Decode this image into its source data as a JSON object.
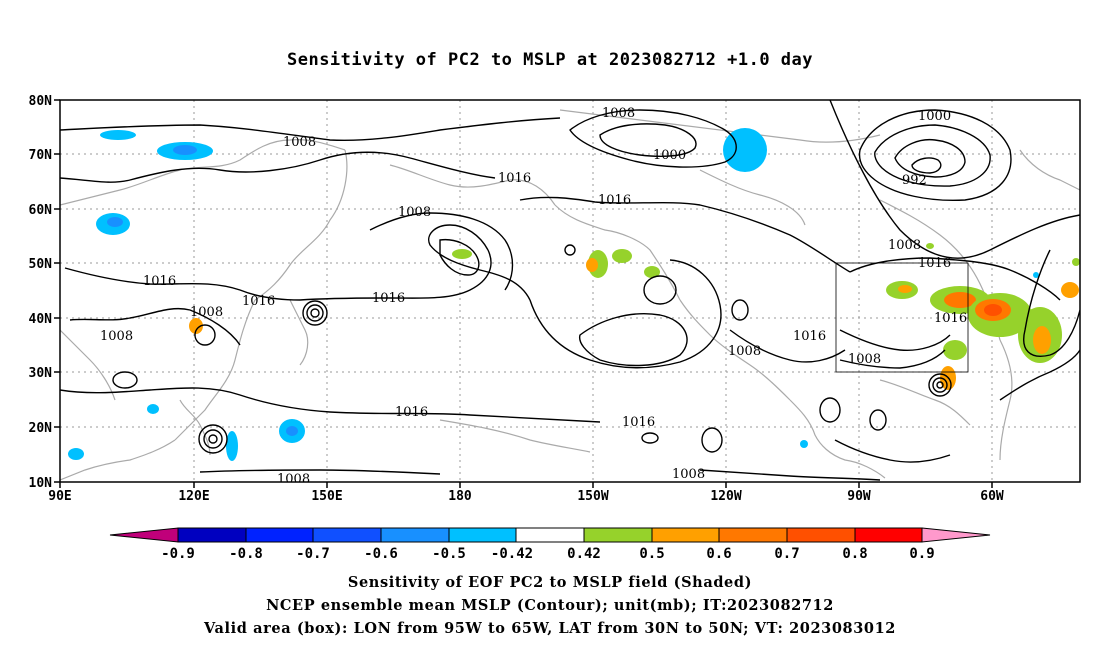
{
  "title": "Sensitivity of PC2 to MSLP at 2023082712 +1.0 day",
  "map": {
    "lat_labels": [
      "80N",
      "70N",
      "60N",
      "50N",
      "40N",
      "30N",
      "20N",
      "10N"
    ],
    "lon_labels": [
      "90E",
      "120E",
      "150E",
      "180",
      "150W",
      "120W",
      "90W",
      "60W"
    ],
    "valid_box": {
      "lon_from": "95W",
      "lon_to": "65W",
      "lat_from": "30N",
      "lat_to": "50N"
    },
    "contour_labels": [
      "1008",
      "1008",
      "1000",
      "1000",
      "992",
      "1008",
      "1016",
      "1016",
      "1008",
      "1016",
      "1016",
      "1016",
      "1008",
      "1016",
      "1016",
      "1016",
      "1008",
      "1008",
      "1016",
      "1016",
      "1008",
      "1008",
      "1008"
    ],
    "shading_colors": {
      "neg_09": "#7b0099",
      "neg_08": "#0000c0",
      "neg_07": "#0022ff",
      "neg_06": "#1050ff",
      "neg_05": "#1890ff",
      "neg_042": "#00c0ff",
      "neutral": "#ffffff",
      "pos_042": "#96d22b",
      "pos_05": "#ffa000",
      "pos_06": "#ff7800",
      "pos_07": "#ff5000",
      "pos_08": "#ff0000",
      "pos_09": "#ff99cc"
    }
  },
  "colorbar": {
    "labels": [
      "-0.9",
      "-0.8",
      "-0.7",
      "-0.6",
      "-0.5",
      "-0.42",
      "0.42",
      "0.5",
      "0.6",
      "0.7",
      "0.8",
      "0.9"
    ]
  },
  "captions": {
    "line1": "Sensitivity of EOF PC2 to MSLP field (Shaded)",
    "line2": "NCEP ensemble mean MSLP (Contour); unit(mb); IT:2023082712",
    "line3": "Valid area (box): LON from 95W to 65W, LAT from 30N to 50N; VT: 2023083012"
  }
}
